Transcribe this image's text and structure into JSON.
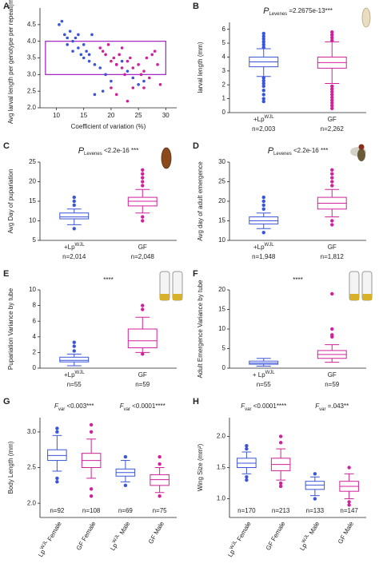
{
  "chart_data": [
    {
      "type": "scatter",
      "panel": "A",
      "ylabel": "Avg larval length per genotype per repeat(mm)",
      "xlabel": "Coefficient of variation (%)",
      "xlim": [
        7,
        32
      ],
      "xticks": [
        10,
        15,
        20,
        25,
        30
      ],
      "ylim": [
        2.0,
        5.0
      ],
      "yticks": [
        {
          "value": 2.0,
          "label": "2.0"
        },
        2.5,
        {
          "value": 3.0,
          "label": "3.0"
        },
        3.5,
        {
          "value": 4.0,
          "label": "4.0"
        },
        4.5
      ],
      "highlight": {
        "x": [
          8,
          30
        ],
        "y": [
          3,
          4
        ],
        "color": "#a020c0"
      },
      "series": [
        {
          "color": "#3a55d8",
          "x": [
            10.5,
            11,
            11.5,
            12,
            12,
            12.5,
            13,
            13,
            13.5,
            14,
            14,
            14.5,
            15,
            15,
            15.5,
            16,
            16.5,
            17,
            18,
            18.5,
            19,
            20,
            21,
            22,
            23,
            24,
            25,
            26,
            17,
            16
          ],
          "values": [
            4.5,
            4.6,
            4.2,
            4.1,
            3.9,
            4.3,
            4.0,
            3.7,
            4.1,
            3.8,
            4.2,
            3.6,
            3.9,
            3.5,
            3.7,
            3.4,
            4.2,
            3.3,
            3.2,
            2.5,
            3.0,
            2.8,
            3.3,
            3.4,
            3.1,
            2.9,
            2.7,
            2.8,
            2.4,
            3.6
          ]
        },
        {
          "color": "#d0209a",
          "x": [
            18,
            18.5,
            19,
            19.5,
            20,
            20.5,
            21,
            21.5,
            22,
            22,
            22.5,
            23,
            23.5,
            24,
            24,
            25,
            25.5,
            26,
            26.5,
            27,
            27.5,
            28,
            28.5,
            29,
            21,
            20,
            26,
            23
          ],
          "values": [
            3.8,
            3.7,
            3.6,
            3.9,
            3.4,
            3.5,
            3.3,
            3.6,
            3.2,
            3.8,
            3.0,
            3.4,
            3.5,
            2.6,
            3.2,
            3.3,
            3.0,
            3.1,
            3.5,
            2.9,
            3.6,
            3.7,
            3.3,
            2.7,
            2.4,
            2.6,
            2.6,
            2.2
          ]
        }
      ]
    },
    {
      "type": "box",
      "panel": "B",
      "title": {
        "italic": "P",
        "sub": "Levenes",
        "text": " =2.2675e-13***"
      },
      "ylabel": "larval length (mm)",
      "ylim": [
        0,
        6.5
      ],
      "yticks": [
        0,
        1,
        2,
        3,
        4,
        5,
        6
      ],
      "groups": [
        {
          "label": {
            "text": "+Lp",
            "sup": "WJL"
          },
          "n": "n=2,003",
          "color": "#3a55d8",
          "whisker": [
            2.6,
            4.6
          ],
          "q1": 3.3,
          "median": 3.65,
          "q3": 4.0,
          "outliers": [
            0.8,
            1.0,
            1.3,
            1.6,
            1.9,
            2.1,
            2.3,
            2.5,
            4.7,
            4.9,
            5.1,
            5.3,
            5.5,
            5.7
          ]
        },
        {
          "label": {
            "text": "GF"
          },
          "n": "n=2,262",
          "color": "#d0209a",
          "whisker": [
            2.1,
            5.1
          ],
          "q1": 3.2,
          "median": 3.6,
          "q3": 4.0,
          "outliers": [
            0.3,
            0.5,
            0.7,
            0.9,
            1.1,
            1.3,
            1.5,
            1.7,
            1.9,
            5.2,
            5.4,
            5.6,
            5.8
          ]
        }
      ]
    },
    {
      "type": "box",
      "panel": "C",
      "title": {
        "italic": "P",
        "sub": "Levenes",
        "text": " <2.2e-16 ***"
      },
      "ylabel": "Avg Day of pupariation",
      "ylim": [
        5,
        25
      ],
      "yticks": [
        5,
        10,
        15,
        20,
        25
      ],
      "groups": [
        {
          "label": {
            "text": "+Lp",
            "sup": "WJL"
          },
          "n": "n=2,014",
          "color": "#3a55d8",
          "whisker": [
            9,
            13
          ],
          "q1": 10.5,
          "median": 11,
          "q3": 12,
          "outliers": [
            8,
            14,
            15,
            16
          ]
        },
        {
          "label": {
            "text": "GF"
          },
          "n": "n=2,048",
          "color": "#d0209a",
          "whisker": [
            12,
            18
          ],
          "q1": 13.8,
          "median": 15,
          "q3": 16,
          "outliers": [
            10,
            11,
            19,
            20,
            21,
            22,
            23
          ]
        }
      ]
    },
    {
      "type": "box",
      "panel": "D",
      "title": {
        "italic": "P",
        "sub": "Levenes",
        "text": " <2.2e-16 ***"
      },
      "ylabel": "Avg day of adult emergence",
      "ylim": [
        10,
        30
      ],
      "yticks": [
        10,
        15,
        20,
        25,
        30
      ],
      "groups": [
        {
          "label": {
            "text": "+Lp",
            "sup": "WJL"
          },
          "n": "n=1,948",
          "color": "#3a55d8",
          "whisker": [
            13,
            17
          ],
          "q1": 14.2,
          "median": 15,
          "q3": 16,
          "outliers": [
            12,
            18,
            19,
            20,
            21
          ]
        },
        {
          "label": {
            "text": "GF"
          },
          "n": "n=1,812",
          "color": "#d0209a",
          "whisker": [
            16,
            23
          ],
          "q1": 18,
          "median": 19.5,
          "q3": 21,
          "outliers": [
            14,
            15,
            24,
            25,
            26,
            27,
            28
          ]
        }
      ]
    },
    {
      "type": "box",
      "panel": "E",
      "annotation": "****",
      "ylabel": "Pupariation Variance by tube",
      "ylim": [
        0,
        10
      ],
      "yticks": [
        0,
        2,
        4,
        6,
        8,
        10
      ],
      "groups": [
        {
          "label": {
            "text": "+Lp",
            "sup": "WJL"
          },
          "n": "n=55",
          "color": "#3a55d8",
          "whisker": [
            0.3,
            1.8
          ],
          "q1": 0.8,
          "median": 1.0,
          "q3": 1.4,
          "outliers": [
            2.2,
            2.8,
            3.3
          ]
        },
        {
          "label": {
            "text": "GF"
          },
          "n": "n=59",
          "color": "#d0209a",
          "whisker": [
            2,
            6.5
          ],
          "q1": 2.6,
          "median": 3.5,
          "q3": 5,
          "outliers": [
            1.8,
            7.5,
            8.0
          ]
        }
      ]
    },
    {
      "type": "box",
      "panel": "F",
      "annotation": "****",
      "ylabel": "Adult Emergence Variance by tube",
      "ylim": [
        0,
        20
      ],
      "yticks": [
        0,
        5,
        10,
        15,
        20
      ],
      "groups": [
        {
          "label": {
            "text": "+ Lp",
            "sup": "WJL"
          },
          "n": "n=55",
          "color": "#3a55d8",
          "whisker": [
            0.5,
            2.5
          ],
          "q1": 1.0,
          "median": 1.3,
          "q3": 1.8,
          "outliers": []
        },
        {
          "label": {
            "text": "GF"
          },
          "n": "n=59",
          "color": "#d0209a",
          "whisker": [
            1.5,
            6
          ],
          "q1": 2.5,
          "median": 3.5,
          "q3": 4.5,
          "outliers": [
            8,
            8.5,
            10,
            19
          ]
        }
      ]
    },
    {
      "type": "box",
      "panel": "G",
      "ylabel": "Body Length (mm)",
      "rotate_labels": true,
      "annotations": [
        {
          "italic": "F",
          "sub": "var",
          "text": " <0.003***"
        },
        {
          "italic": "F",
          "sub": "var",
          "text": " <0.0001****"
        }
      ],
      "ylim": [
        1.8,
        3.2
      ],
      "yticks": [
        {
          "value": 2.0,
          "label": "2.0"
        },
        2.5,
        {
          "value": 3.0,
          "label": "3.0"
        }
      ],
      "groups": [
        {
          "label": {
            "text": "Lp",
            "sup": "WJL",
            "rest": " Female"
          },
          "n": "n=92",
          "color": "#3a55d8",
          "whisker": [
            2.45,
            2.95
          ],
          "q1": 2.6,
          "median": 2.67,
          "q3": 2.75,
          "outliers": [
            2.3,
            2.35,
            3.0,
            3.05
          ]
        },
        {
          "label": {
            "text": "GF Female"
          },
          "n": "n=108",
          "color": "#d0209a",
          "whisker": [
            2.35,
            2.9
          ],
          "q1": 2.5,
          "median": 2.6,
          "q3": 2.7,
          "outliers": [
            2.1,
            2.2,
            3.0,
            3.1
          ]
        },
        {
          "label": {
            "text": "Lp",
            "sup": "WJL",
            "rest": " Male"
          },
          "n": "n=69",
          "color": "#3a55d8",
          "whisker": [
            2.3,
            2.6
          ],
          "q1": 2.38,
          "median": 2.43,
          "q3": 2.48,
          "outliers": [
            2.25,
            2.65
          ]
        },
        {
          "label": {
            "text": "GF Male"
          },
          "n": "n=75",
          "color": "#d0209a",
          "whisker": [
            2.15,
            2.5
          ],
          "q1": 2.25,
          "median": 2.33,
          "q3": 2.4,
          "outliers": [
            2.1,
            2.55,
            2.65
          ]
        }
      ]
    },
    {
      "type": "box",
      "panel": "H",
      "ylabel": "Wing Size (mm²)",
      "rotate_labels": true,
      "annotations": [
        {
          "italic": "F",
          "sub": "var",
          "text": " <0.0001****"
        },
        {
          "italic": "F",
          "sub": "var",
          "text": " =.043**"
        }
      ],
      "ylim": [
        0.7,
        2.3
      ],
      "yticks": [
        {
          "value": 1.0,
          "label": "1.0"
        },
        1.5,
        {
          "value": 2.0,
          "label": "2.0"
        }
      ],
      "groups": [
        {
          "label": {
            "text": "Lp",
            "sup": "WJL",
            "rest": " Female"
          },
          "n": "n=170",
          "color": "#3a55d8",
          "whisker": [
            1.4,
            1.75
          ],
          "q1": 1.5,
          "median": 1.57,
          "q3": 1.65,
          "outliers": [
            1.3,
            1.35,
            1.8,
            1.85
          ]
        },
        {
          "label": {
            "text": "GF Female"
          },
          "n": "n=213",
          "color": "#d0209a",
          "whisker": [
            1.3,
            1.8
          ],
          "q1": 1.45,
          "median": 1.55,
          "q3": 1.65,
          "outliers": [
            1.2,
            1.25,
            1.9,
            2.0
          ]
        },
        {
          "label": {
            "text": "Lp",
            "sup": "WJL",
            "rest": " Male"
          },
          "n": "n=133",
          "color": "#3a55d8",
          "whisker": [
            1.05,
            1.35
          ],
          "q1": 1.15,
          "median": 1.22,
          "q3": 1.28,
          "outliers": [
            1.0,
            1.4
          ]
        },
        {
          "label": {
            "text": "GF Male"
          },
          "n": "n=147",
          "color": "#d0209a",
          "whisker": [
            1.0,
            1.4
          ],
          "q1": 1.12,
          "median": 1.2,
          "q3": 1.28,
          "outliers": [
            0.9,
            0.95,
            1.5
          ]
        }
      ]
    }
  ]
}
